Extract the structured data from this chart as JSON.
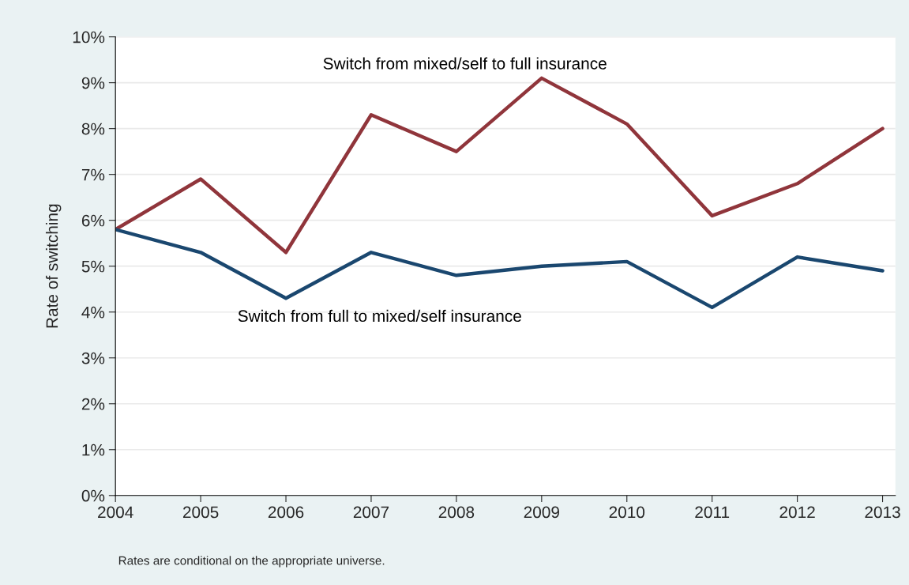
{
  "chart_data": {
    "type": "line",
    "ylabel": "Rate of switching",
    "x": [
      2004,
      2005,
      2006,
      2007,
      2008,
      2009,
      2010,
      2011,
      2012,
      2013
    ],
    "series": [
      {
        "name": "Switch from mixed/self to full insurance",
        "color": "#90353b",
        "values": [
          5.8,
          6.9,
          5.3,
          8.3,
          7.5,
          9.1,
          8.1,
          6.1,
          6.8,
          8.0
        ]
      },
      {
        "name": "Switch from full to mixed/self insurance",
        "color": "#1a476f",
        "values": [
          5.8,
          5.3,
          4.3,
          5.3,
          4.8,
          5.0,
          5.1,
          4.1,
          5.2,
          4.9
        ]
      }
    ],
    "xlim": [
      2004,
      2013.15
    ],
    "xticks": [
      2004,
      2005,
      2006,
      2007,
      2008,
      2009,
      2010,
      2011,
      2012,
      2013
    ],
    "ylim": [
      0,
      10
    ],
    "yticks": [
      {
        "value": 0,
        "label": "0%"
      },
      {
        "value": 1,
        "label": "1%"
      },
      {
        "value": 2,
        "label": "2%"
      },
      {
        "value": 3,
        "label": "3%"
      },
      {
        "value": 4,
        "label": "4%"
      },
      {
        "value": 5,
        "label": "5%"
      },
      {
        "value": 6,
        "label": "6%"
      },
      {
        "value": 7,
        "label": "7%"
      },
      {
        "value": 8,
        "label": "8%"
      },
      {
        "value": 9,
        "label": "9%"
      },
      {
        "value": 10,
        "label": "10%"
      }
    ],
    "grid": "y",
    "marker": "none",
    "line_style": "solid",
    "annotations": [
      "Rates are conditional on the appropriate universe."
    ]
  }
}
